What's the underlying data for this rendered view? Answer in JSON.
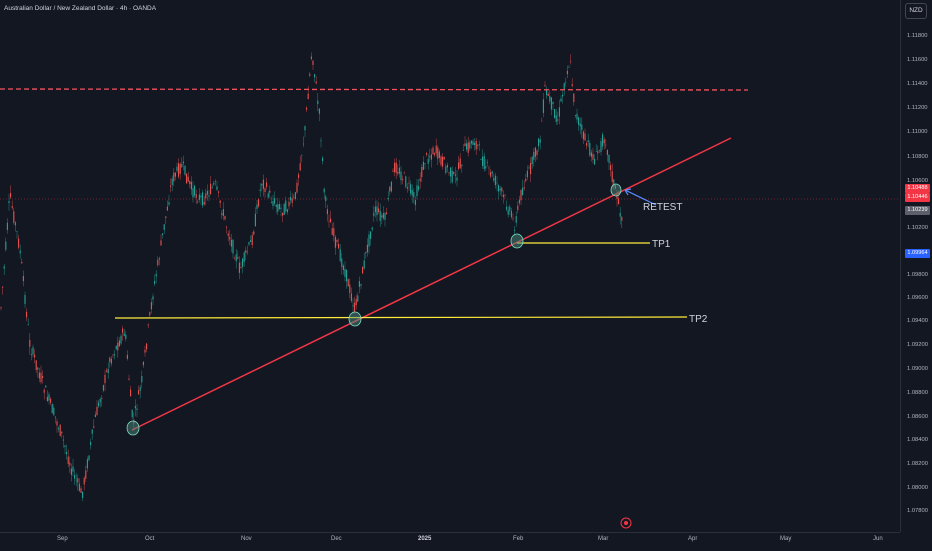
{
  "header": {
    "title": "Australian Dollar / New Zealand Dollar · 4h · OANDA"
  },
  "currency": "NZD",
  "price_axis": {
    "ticks": [
      "1.11800",
      "1.11600",
      "1.11400",
      "1.11200",
      "1.11000",
      "1.10800",
      "1.10600",
      "1.10200",
      "1.09800",
      "1.09600",
      "1.09400",
      "1.09200",
      "1.09000",
      "1.08800",
      "1.08600",
      "1.08400",
      "1.08200",
      "1.08000",
      "1.07800"
    ],
    "tags": [
      {
        "label": "1.10488",
        "color": "#f23645"
      },
      {
        "label": "1.10446",
        "color": "#f23645"
      },
      {
        "label": "1.10239",
        "color": "#5d606b"
      },
      {
        "label": "1.09964",
        "color": "#2962ff"
      }
    ]
  },
  "time_axis": {
    "labels": [
      {
        "text": "Sep",
        "bold": false
      },
      {
        "text": "Oct",
        "bold": false
      },
      {
        "text": "Nov",
        "bold": false
      },
      {
        "text": "Dec",
        "bold": false
      },
      {
        "text": "2025",
        "bold": true
      },
      {
        "text": "Feb",
        "bold": false
      },
      {
        "text": "Mar",
        "bold": false
      },
      {
        "text": "Apr",
        "bold": false
      },
      {
        "text": "May",
        "bold": false
      },
      {
        "text": "Jun",
        "bold": false
      }
    ]
  },
  "annotations": {
    "retest": "RETEST",
    "tp1": "TP1",
    "tp2": "TP2"
  },
  "colors": {
    "up": "#26a69a",
    "down": "#ef5350",
    "trendline": "#f23645",
    "target": "#ffeb3b",
    "resistance": "#f7525f",
    "arrow": "#2962ff"
  }
}
